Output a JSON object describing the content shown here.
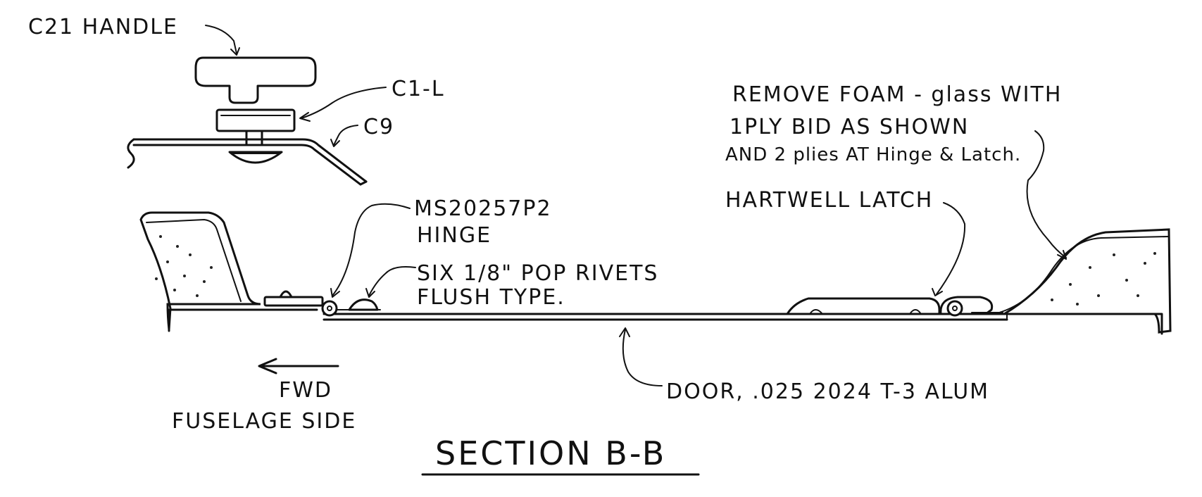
{
  "labels": {
    "handle": "C21 HANDLE",
    "c1l": "C1-L",
    "c9": "C9",
    "remove_foam_1": "REMOVE FOAM - glass WITH",
    "remove_foam_2": "1PLY BID AS SHOWN",
    "remove_foam_3": "AND 2 plies AT Hinge & Latch.",
    "hinge_1": "MS20257P2",
    "hinge_2": "HINGE",
    "latch": "HARTWELL LATCH",
    "rivets_1": "SIX 1/8\" POP RIVETS",
    "rivets_2": "FLUSH TYPE.",
    "fwd": "FWD",
    "fuselage_side": "FUSELAGE SIDE",
    "door": "DOOR, .025 2024 T-3 ALUM",
    "section": "SECTION B-B"
  },
  "colors": {
    "ink": "#111111",
    "paper": "#ffffff"
  }
}
